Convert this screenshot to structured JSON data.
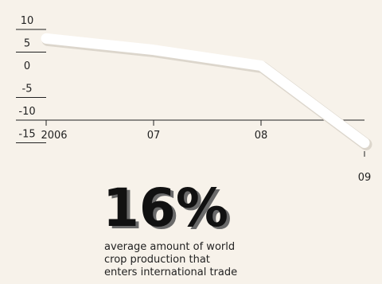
{
  "chart_data": {
    "type": "line",
    "x": [
      "2006",
      "07",
      "08",
      "09"
    ],
    "series": [
      {
        "values": [
          8,
          5.5,
          2,
          -15
        ]
      }
    ],
    "ylim": [
      -15,
      10
    ],
    "y_ticks": [
      "10",
      "5",
      "0",
      "-5",
      "-10",
      "-15"
    ],
    "x_tick_labels": [
      "2006",
      "07",
      "08",
      "09"
    ],
    "title": "",
    "xlabel": "",
    "ylabel": "",
    "grid": false,
    "line_color": "#ffffff"
  },
  "callout": {
    "value": "16%",
    "caption_lines": [
      "average amount of world",
      "crop production that",
      "enters international trade"
    ]
  },
  "colors": {
    "background": "#f7f2ea",
    "axis": "#222222",
    "line": "#ffffff",
    "line_shadow": "#dcd6cc"
  }
}
